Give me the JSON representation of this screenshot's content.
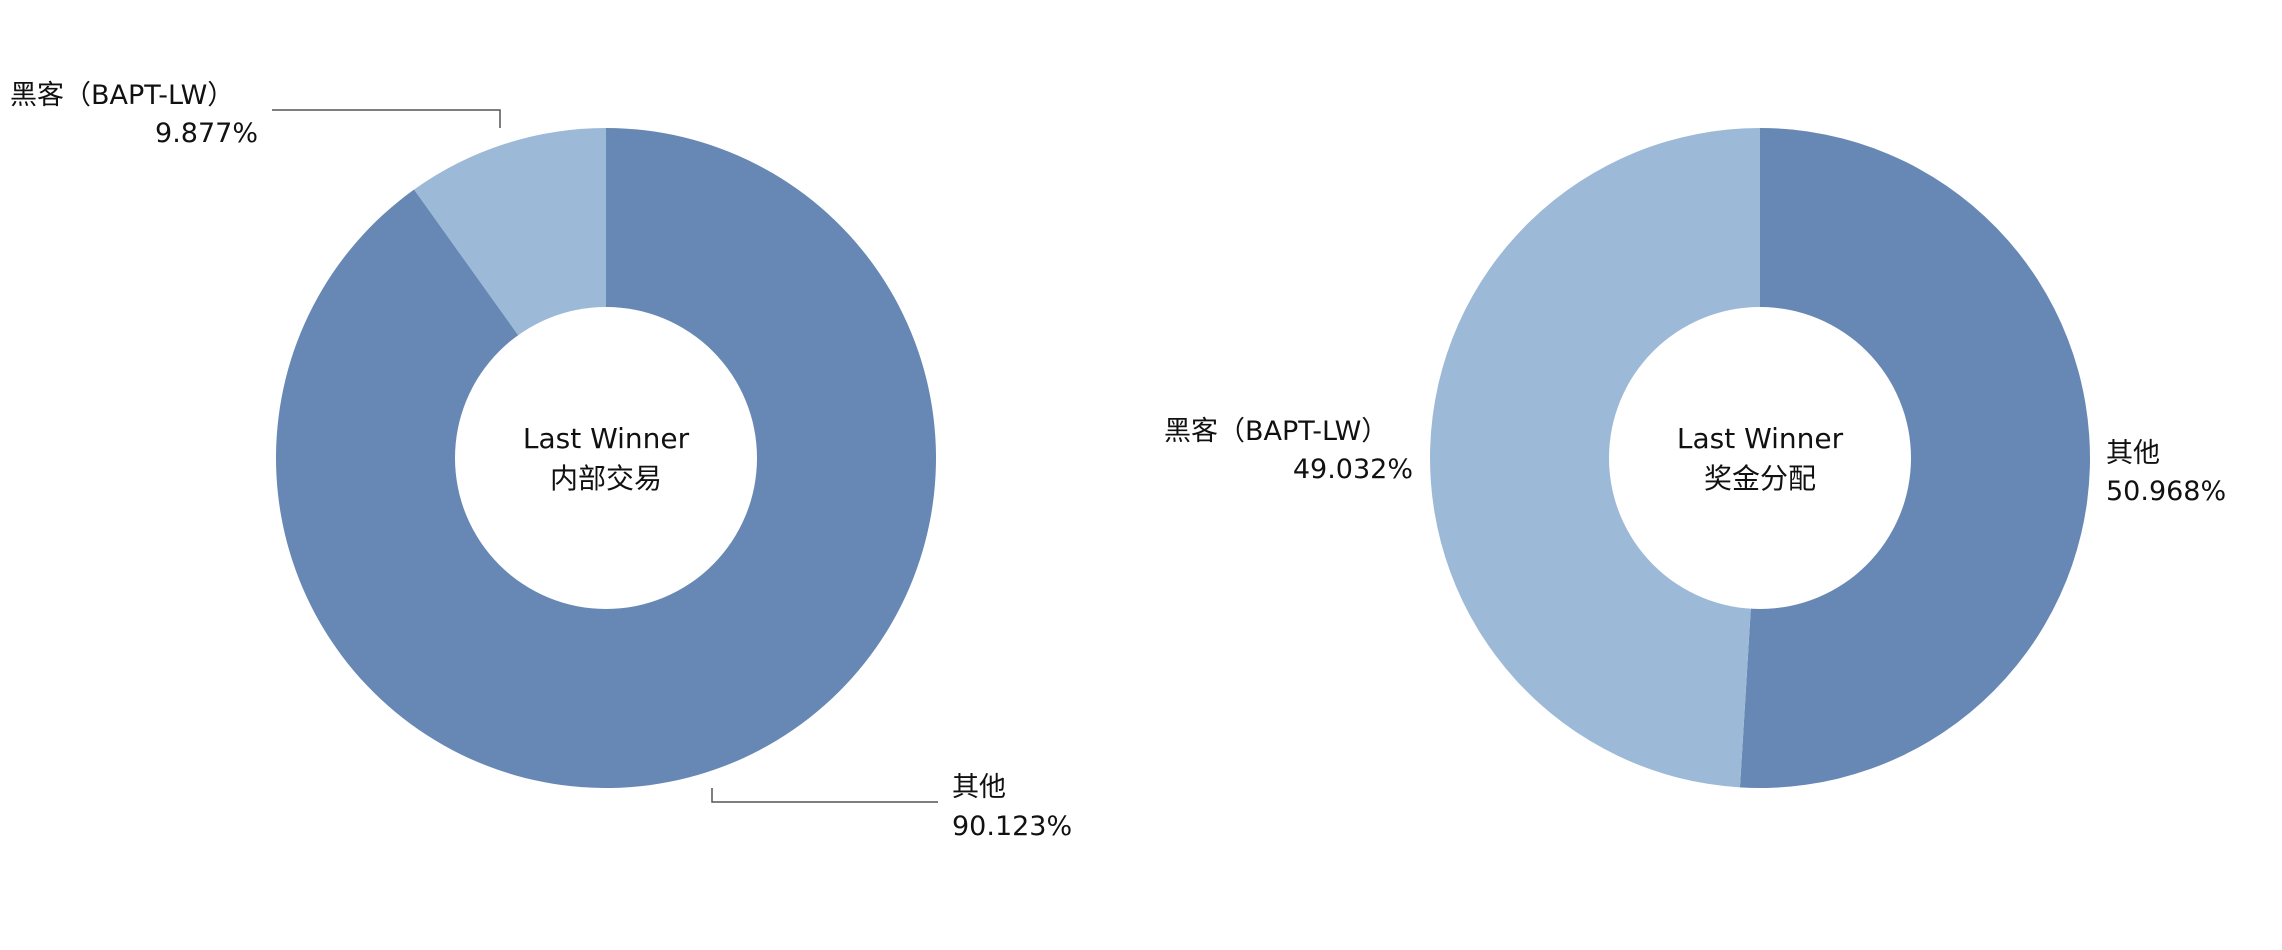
{
  "colors": {
    "primary": "#6788B4",
    "secondary": "#9DB9D8",
    "leader": "#555555",
    "text": "#111111"
  },
  "chart_data": [
    {
      "type": "pie",
      "variant": "donut",
      "center_label": [
        "Last Winner",
        "内部交易"
      ],
      "slices": [
        {
          "label": "其他",
          "value": 90.123,
          "value_text": "90.123%",
          "color": "#6788B4"
        },
        {
          "label": "黑客（BAPT-LW）",
          "value": 9.877,
          "value_text": "9.877%",
          "color": "#9DB9D8"
        }
      ]
    },
    {
      "type": "pie",
      "variant": "donut",
      "center_label": [
        "Last Winner",
        "奖金分配"
      ],
      "slices": [
        {
          "label": "其他",
          "value": 50.968,
          "value_text": "50.968%",
          "color": "#6788B4"
        },
        {
          "label": "黑客（BAPT-LW）",
          "value": 49.032,
          "value_text": "49.032%",
          "color": "#9DB9D8"
        }
      ]
    }
  ]
}
